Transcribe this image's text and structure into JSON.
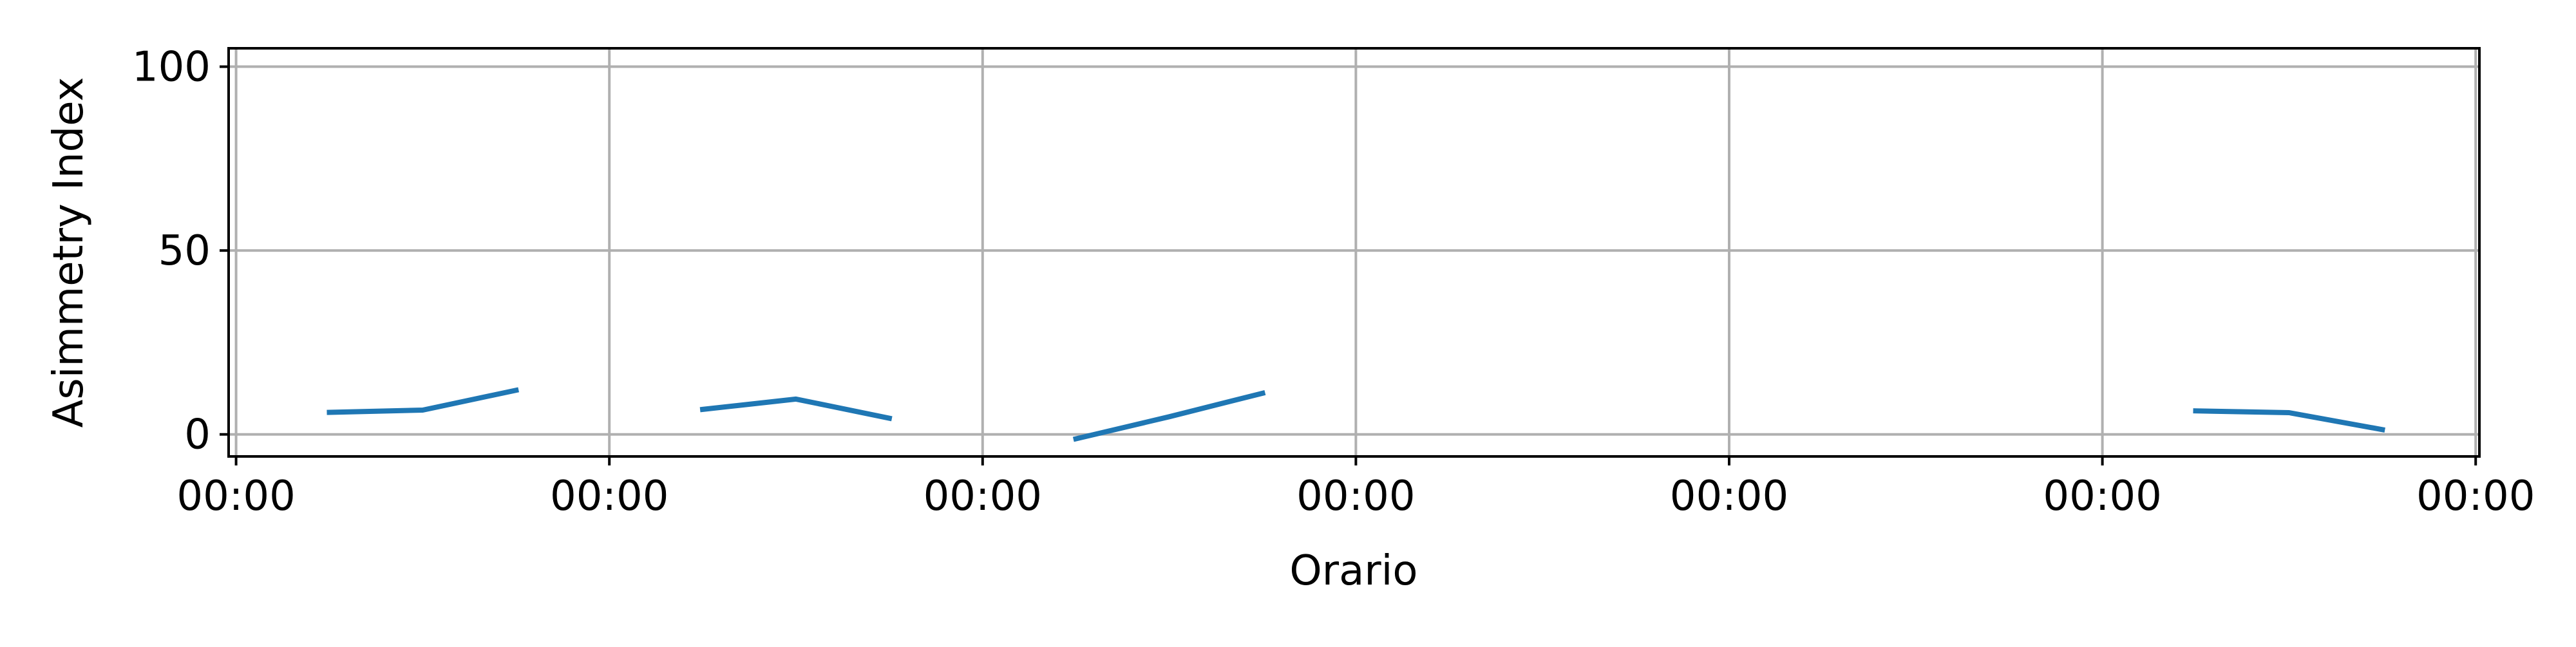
{
  "chart_data": {
    "type": "line",
    "xlabel": "Orario",
    "ylabel": "Asimmetry Index",
    "x_tick_labels": [
      "00:00",
      "00:00",
      "00:00",
      "00:00",
      "00:00",
      "00:00",
      "00:00"
    ],
    "y_ticks": [
      0,
      50,
      100
    ],
    "xlim": [
      -0.02,
      6.01
    ],
    "ylim": [
      -6,
      105
    ],
    "grid": true,
    "color": "#1f77b4",
    "series": [
      {
        "segments": [
          [
            [
              0.25,
              6.0
            ],
            [
              0.5,
              6.6
            ],
            [
              0.75,
              12.0
            ]
          ],
          [
            [
              1.25,
              6.8
            ],
            [
              1.5,
              9.6
            ],
            [
              1.75,
              4.4
            ]
          ],
          [
            [
              2.25,
              -1.2
            ],
            [
              2.5,
              4.8
            ],
            [
              2.75,
              11.2
            ]
          ],
          [
            [
              5.25,
              6.4
            ],
            [
              5.5,
              5.9
            ],
            [
              5.75,
              1.3
            ]
          ]
        ]
      }
    ]
  }
}
